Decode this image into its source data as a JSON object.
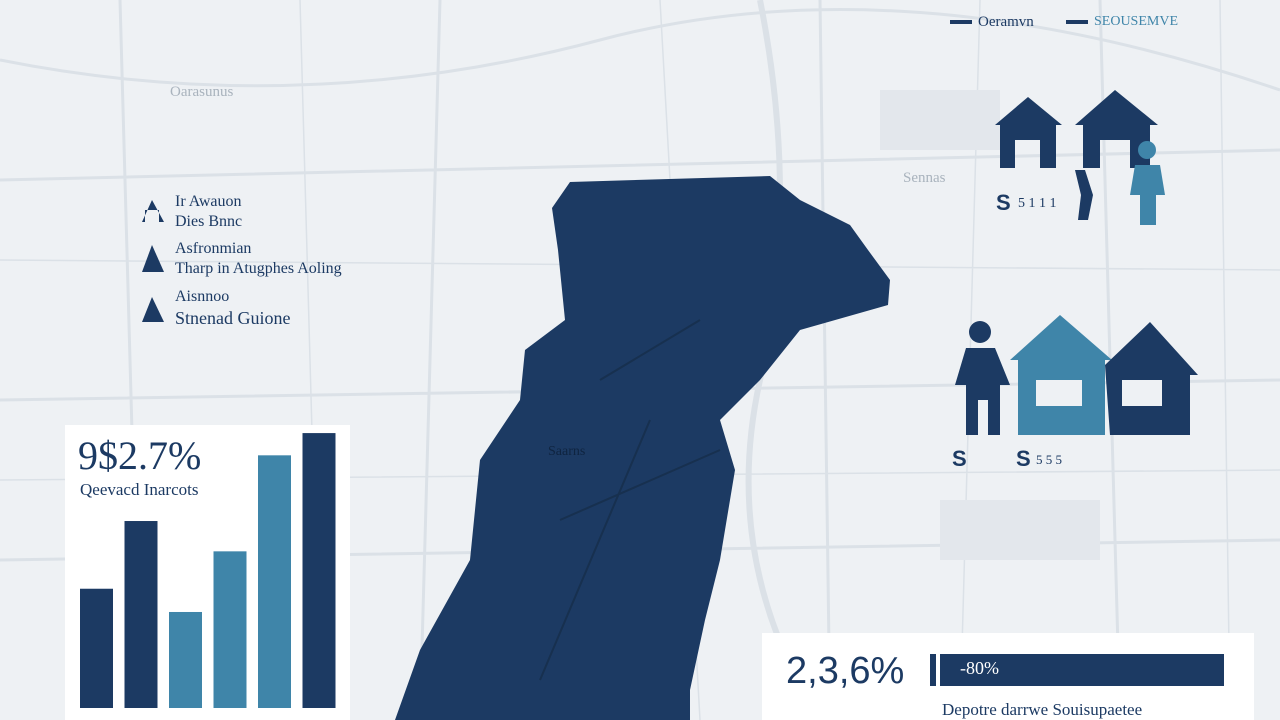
{
  "legend": {
    "items": [
      "Oeramvn",
      "SEOUSEMVE"
    ]
  },
  "map_labels": [
    "Oarasunus",
    "Sennas",
    "Saarns"
  ],
  "key_list": [
    {
      "title": "Ir Awauon",
      "text": "Dies Bnnc"
    },
    {
      "title": "Asfronmian",
      "text": "Tharp in Atugphes Aoling"
    },
    {
      "title": "Aisnnoo",
      "text": "Stnenad Guione"
    }
  ],
  "icons_top": {
    "label_s": "S",
    "label_num": "5 1 1 1"
  },
  "icons_mid": {
    "label_s1": "S",
    "label_s2": "S",
    "label_num": "5 5 5"
  },
  "chart_card": {
    "headline": "9$2.7%",
    "subtitle": "Qeevacd Inarcots",
    "chart_data": {
      "type": "bar",
      "values": [
        118,
        185,
        95,
        155,
        250,
        272
      ],
      "colors": [
        "#1c3a63",
        "#1c3a63",
        "#3f85a9",
        "#3f85a9",
        "#3f85a9",
        "#1c3a63"
      ],
      "ylim": [
        0,
        280
      ]
    }
  },
  "stat_card": {
    "headline": "2,3,6%",
    "bar_label": "-80%",
    "caption": "Depotre darrwe Souisupaetee"
  }
}
